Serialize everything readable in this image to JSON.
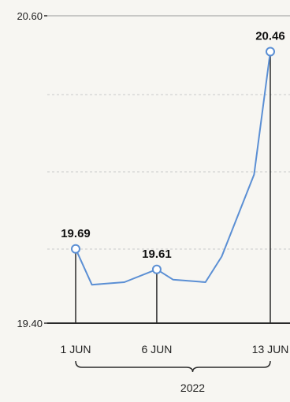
{
  "chart_data": {
    "type": "line",
    "title": "",
    "xlabel": "2022",
    "ylabel": "",
    "ylim": [
      19.4,
      20.6
    ],
    "grid": true,
    "y_ticks": [
      {
        "value": 20.6,
        "label": "20.60"
      },
      {
        "value": 19.4,
        "label": "19.40"
      }
    ],
    "x_ticks": [
      {
        "x": 1,
        "label": "1 JUN"
      },
      {
        "x": 6,
        "label": "6 JUN"
      },
      {
        "x": 13,
        "label": "13 JUN"
      }
    ],
    "series": [
      {
        "color": "#5b8fd4",
        "points": [
          {
            "x": 1,
            "y": 19.69
          },
          {
            "x": 2,
            "y": 19.55
          },
          {
            "x": 4,
            "y": 19.56
          },
          {
            "x": 6,
            "y": 19.61
          },
          {
            "x": 7,
            "y": 19.57
          },
          {
            "x": 9,
            "y": 19.56
          },
          {
            "x": 10,
            "y": 19.66
          },
          {
            "x": 12,
            "y": 19.98
          },
          {
            "x": 13,
            "y": 20.46
          }
        ]
      }
    ],
    "annotations": [
      {
        "x": 1,
        "y": 19.69,
        "label": "19.69"
      },
      {
        "x": 6,
        "y": 19.61,
        "label": "19.61"
      },
      {
        "x": 13,
        "y": 20.46,
        "label": "20.46"
      }
    ],
    "colors": {
      "line": "#5b8fd4",
      "axis": "#2a2a2a",
      "grid": "#c9c9c9",
      "marker_fill": "#ffffff",
      "background": "#f7f6f2"
    }
  }
}
